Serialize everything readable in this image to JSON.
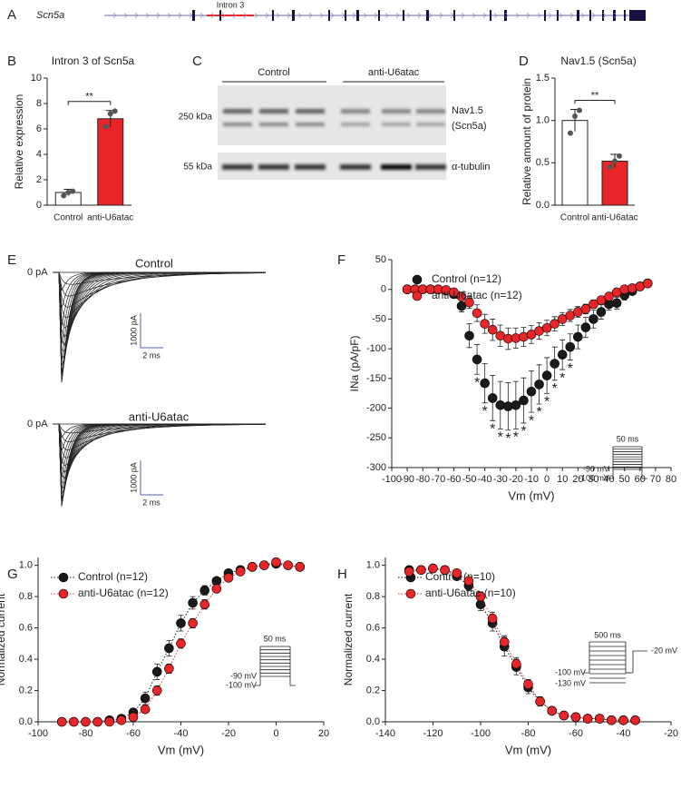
{
  "figure": {
    "panel_labels": [
      "A",
      "B",
      "C",
      "D",
      "E",
      "F",
      "G",
      "H"
    ],
    "gene": {
      "name": "Scn5a",
      "intron_label": "Intron 3"
    },
    "blot": {
      "groups": [
        "Control",
        "anti-U6atac"
      ],
      "markers": [
        "250 kDa",
        "55 kDa"
      ],
      "bands": [
        "Nav1.5",
        "(Scn5a)",
        "α-tubulin"
      ]
    },
    "traces": {
      "conditions": [
        "Control",
        "anti-U6atac"
      ],
      "zero_label": "0 pA",
      "scale_y": "1000 pA",
      "scale_x": "2 ms"
    },
    "protocols": {
      "F": [
        "50 ms",
        "-90 mV",
        "-100 mV"
      ],
      "G": [
        "50 ms",
        "-90 mV",
        "-100 mV"
      ],
      "H": [
        "500 ms",
        "-20 mV",
        "-100 mV",
        "-130 mV"
      ]
    }
  },
  "chart_data": [
    {
      "type": "bar",
      "title": "Intron 3 of Scn5a",
      "ylabel": "Relative expression",
      "categories": [
        "Control",
        "anti-U6atac"
      ],
      "values": [
        1.0,
        6.8
      ],
      "errors": [
        0.25,
        0.65
      ],
      "points": [
        [
          0.75,
          1.0,
          1.1
        ],
        [
          6.2,
          7.2,
          7.4
        ]
      ],
      "colors": [
        "#ffffff",
        "#e8262a"
      ],
      "ylim": [
        0,
        10
      ],
      "yticks": [
        0,
        2,
        4,
        6,
        8,
        10
      ],
      "significance": "**"
    },
    {
      "type": "bar",
      "title": "Nav1.5 (Scn5a)",
      "ylabel": "Relative amount of protein",
      "categories": [
        "Control",
        "anti-U6atac"
      ],
      "values": [
        1.0,
        0.52
      ],
      "errors": [
        0.13,
        0.08
      ],
      "points": [
        [
          0.85,
          1.05,
          1.12
        ],
        [
          0.45,
          0.52,
          0.58
        ]
      ],
      "colors": [
        "#ffffff",
        "#e8262a"
      ],
      "ylim": [
        0,
        1.5
      ],
      "yticks": [
        {
          "value": 0,
          "label": "0.0"
        },
        {
          "value": 0.5,
          "label": "0.5"
        },
        {
          "value": 1,
          "label": "1.0"
        },
        {
          "value": 1.5,
          "label": "1.5"
        }
      ],
      "significance": "**"
    },
    {
      "type": "scatter",
      "xlabel": "Vm (mV)",
      "ylabel": "INa (pA/pF)",
      "legend": "upper-left",
      "x": [
        -90,
        -85,
        -80,
        -75,
        -70,
        -65,
        -60,
        -55,
        -50,
        -45,
        -40,
        -35,
        -30,
        -25,
        -20,
        -15,
        -10,
        -5,
        0,
        5,
        10,
        15,
        20,
        25,
        30,
        35,
        40,
        45,
        50,
        55,
        60,
        65
      ],
      "series": [
        {
          "name": "Control (n=12)",
          "color": "#1a1a1a",
          "values": [
            0,
            0,
            0,
            0,
            0,
            -2,
            -8,
            -28,
            -78,
            -118,
            -158,
            -183,
            -195,
            -197,
            -195,
            -187,
            -172,
            -160,
            -145,
            -125,
            -110,
            -97,
            -80,
            -64,
            -50,
            -38,
            -25,
            -23,
            -10,
            -3,
            5,
            10
          ],
          "errors": [
            1,
            1,
            1,
            1,
            1,
            2,
            4,
            10,
            20,
            25,
            33,
            38,
            40,
            40,
            40,
            38,
            35,
            33,
            30,
            28,
            25,
            22,
            20,
            17,
            15,
            12,
            10,
            10,
            8,
            6,
            6,
            6
          ]
        },
        {
          "name": "anti-U6atac (n=12)",
          "color": "#e8262a",
          "values": [
            0,
            0,
            0,
            0,
            0,
            -1,
            -5,
            -12,
            -22,
            -40,
            -58,
            -68,
            -78,
            -83,
            -82,
            -80,
            -76,
            -70,
            -65,
            -58,
            -50,
            -44,
            -38,
            -33,
            -25,
            -18,
            -12,
            -5,
            0,
            2,
            5,
            10
          ],
          "errors": [
            1,
            1,
            1,
            1,
            1,
            2,
            3,
            6,
            10,
            14,
            16,
            18,
            18,
            18,
            17,
            16,
            15,
            14,
            13,
            12,
            11,
            10,
            9,
            8,
            7,
            6,
            6,
            5,
            5,
            4,
            4,
            5
          ]
        }
      ],
      "xlim": [
        -100,
        80
      ],
      "xticks": [
        -100,
        -90,
        -80,
        -70,
        -60,
        -50,
        -40,
        -30,
        -20,
        -10,
        0,
        10,
        20,
        30,
        40,
        50,
        60,
        70,
        80
      ],
      "ylim": [
        -300,
        50
      ],
      "yticks": [
        -300,
        -250,
        -200,
        -150,
        -100,
        -50,
        0,
        50
      ],
      "annotations": [
        {
          "x": -45,
          "text": "*"
        },
        {
          "x": -40,
          "text": "*"
        },
        {
          "x": -35,
          "text": "*"
        },
        {
          "x": -30,
          "text": "*"
        },
        {
          "x": -25,
          "text": "*"
        },
        {
          "x": -20,
          "text": "*"
        },
        {
          "x": -15,
          "text": "*"
        },
        {
          "x": -10,
          "text": "*"
        },
        {
          "x": -5,
          "text": "*"
        },
        {
          "x": 0,
          "text": "*"
        },
        {
          "x": 5,
          "text": "*"
        },
        {
          "x": 10,
          "text": "*"
        },
        {
          "x": 15,
          "text": "*"
        }
      ]
    },
    {
      "type": "scatter",
      "xlabel": "Vm (mV)",
      "ylabel": "Normalized current",
      "legend": "upper-left",
      "line": "dotted",
      "x": [
        -90,
        -85,
        -80,
        -75,
        -70,
        -65,
        -60,
        -55,
        -50,
        -45,
        -40,
        -35,
        -30,
        -25,
        -20,
        -15,
        -10,
        -5,
        0,
        5,
        10
      ],
      "series": [
        {
          "name": "Control (n=12)",
          "color": "#1a1a1a",
          "values": [
            0,
            0,
            0,
            0,
            0.01,
            0.02,
            0.06,
            0.15,
            0.32,
            0.47,
            0.63,
            0.76,
            0.84,
            0.9,
            0.95,
            0.97,
            0.99,
            1.0,
            1.01,
            1.0,
            0.99
          ],
          "errors": [
            0,
            0,
            0,
            0,
            0.01,
            0.01,
            0.02,
            0.04,
            0.05,
            0.05,
            0.05,
            0.04,
            0.03,
            0.02,
            0.02,
            0.01,
            0.01,
            0.01,
            0.01,
            0.01,
            0.01
          ]
        },
        {
          "name": "anti-U6atac (n=12)",
          "color": "#e8262a",
          "values": [
            0,
            0,
            0,
            0,
            0,
            0.01,
            0.03,
            0.08,
            0.2,
            0.34,
            0.5,
            0.63,
            0.75,
            0.85,
            0.92,
            0.96,
            0.99,
            1.0,
            1.02,
            1.0,
            0.99
          ],
          "errors": [
            0,
            0,
            0,
            0,
            0,
            0.01,
            0.01,
            0.02,
            0.03,
            0.03,
            0.03,
            0.03,
            0.03,
            0.02,
            0.02,
            0.01,
            0.01,
            0.01,
            0.01,
            0.01,
            0.01
          ]
        }
      ],
      "xlim": [
        -100,
        20
      ],
      "xticks": [
        -100,
        -80,
        -60,
        -40,
        -20,
        0,
        20
      ],
      "ylim": [
        0,
        1.05
      ],
      "yticks": [
        {
          "value": 0,
          "label": "0.0"
        },
        0.2,
        0.4,
        0.6,
        0.8,
        {
          "value": 1,
          "label": "1.0"
        }
      ]
    },
    {
      "type": "scatter",
      "xlabel": "Vm (mV)",
      "ylabel": "Normalized current",
      "legend": "upper-left",
      "line": "dotted",
      "x": [
        -130,
        -125,
        -120,
        -115,
        -110,
        -105,
        -100,
        -95,
        -90,
        -85,
        -80,
        -75,
        -70,
        -65,
        -60,
        -55,
        -50,
        -45,
        -40,
        -35
      ],
      "series": [
        {
          "name": "Control (n=10)",
          "color": "#1a1a1a",
          "values": [
            0.97,
            0.97,
            0.98,
            0.97,
            0.93,
            0.87,
            0.75,
            0.63,
            0.48,
            0.35,
            0.22,
            0.13,
            0.07,
            0.04,
            0.03,
            0.02,
            0.02,
            0.01,
            0.01,
            0.01
          ],
          "errors": [
            0.01,
            0.01,
            0.01,
            0.02,
            0.02,
            0.03,
            0.04,
            0.05,
            0.06,
            0.05,
            0.04,
            0.03,
            0.02,
            0.01,
            0.01,
            0.01,
            0.01,
            0.01,
            0.01,
            0.01
          ]
        },
        {
          "name": "anti-U6atac (n=10)",
          "color": "#e8262a",
          "values": [
            0.96,
            0.97,
            0.98,
            0.97,
            0.95,
            0.9,
            0.8,
            0.66,
            0.51,
            0.37,
            0.24,
            0.13,
            0.07,
            0.04,
            0.03,
            0.02,
            0.02,
            0.01,
            0.01,
            0.01
          ],
          "errors": [
            0.01,
            0.01,
            0.01,
            0.01,
            0.02,
            0.02,
            0.03,
            0.04,
            0.04,
            0.04,
            0.03,
            0.02,
            0.02,
            0.01,
            0.01,
            0.01,
            0.01,
            0.01,
            0.01,
            0.01
          ]
        }
      ],
      "xlim": [
        -140,
        -20
      ],
      "xticks": [
        -140,
        -120,
        -100,
        -80,
        -60,
        -40,
        -20
      ],
      "ylim": [
        0,
        1.05
      ],
      "yticks": [
        {
          "value": 0,
          "label": "0.0"
        },
        0.2,
        0.4,
        0.6,
        0.8,
        {
          "value": 1,
          "label": "1.0"
        }
      ]
    }
  ]
}
